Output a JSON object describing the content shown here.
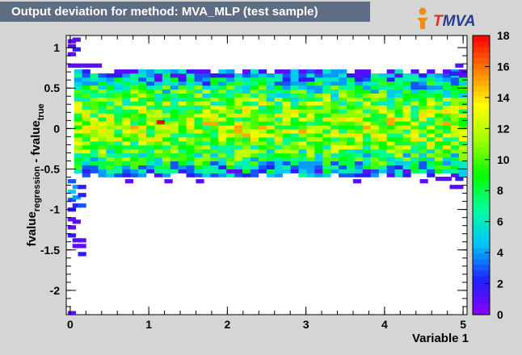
{
  "title": "Output deviation for method: MVA_MLP (test sample)",
  "logo": {
    "t": "T",
    "rest": "MVA"
  },
  "chart_data": {
    "type": "heatmap",
    "title": "Output deviation for method: MVA_MLP (test sample)",
    "xlabel": "Variable 1",
    "ylabel": "fvalue_regression - fvalue_true",
    "xlim": [
      -0.05,
      5.05
    ],
    "ylim": [
      -2.3,
      1.15
    ],
    "zlim": [
      0,
      18
    ],
    "x_ticks": [
      0,
      1,
      2,
      3,
      4,
      5
    ],
    "y_ticks": [
      1,
      0.5,
      0,
      -0.5,
      -1,
      -1.5,
      -2
    ],
    "z_ticks": [
      0,
      2,
      4,
      6,
      8,
      10,
      12,
      14,
      16,
      18
    ],
    "x_bins": 50,
    "y_bins": 70,
    "palette": [
      "#8a00ff",
      "#2020ff",
      "#00c0ff",
      "#00ffa0",
      "#00ff00",
      "#a0ff00",
      "#ffff00",
      "#ff8000",
      "#ff0000"
    ],
    "core_region": {
      "x": [
        0.05,
        5.0
      ],
      "y": [
        -0.6,
        0.72
      ]
    },
    "max_cell": {
      "x": 1.15,
      "y": 0.08,
      "count": 18
    },
    "sparse_points": [
      {
        "x": 0.02,
        "y": 1.08,
        "count": 1
      },
      {
        "x": 0.08,
        "y": 1.1,
        "count": 1
      },
      {
        "x": 0.02,
        "y": 1.02,
        "count": 1
      },
      {
        "x": 0.08,
        "y": 0.98,
        "count": 2
      },
      {
        "x": 0.02,
        "y": 0.92,
        "count": 1
      },
      {
        "x": 0.02,
        "y": 0.78,
        "count": 1
      },
      {
        "x": 0.08,
        "y": 0.78,
        "count": 1
      },
      {
        "x": 0.15,
        "y": 0.78,
        "count": 1
      },
      {
        "x": 0.25,
        "y": 0.78,
        "count": 1
      },
      {
        "x": 0.35,
        "y": 0.78,
        "count": 1
      },
      {
        "x": 0.02,
        "y": -0.65,
        "count": 3
      },
      {
        "x": 0.08,
        "y": -0.72,
        "count": 4
      },
      {
        "x": 0.02,
        "y": -0.78,
        "count": 5
      },
      {
        "x": 0.15,
        "y": -0.72,
        "count": 2
      },
      {
        "x": 0.02,
        "y": -0.88,
        "count": 3
      },
      {
        "x": 0.08,
        "y": -0.85,
        "count": 4
      },
      {
        "x": 0.15,
        "y": -0.82,
        "count": 2
      },
      {
        "x": 0.08,
        "y": -0.95,
        "count": 2
      },
      {
        "x": 0.15,
        "y": -0.95,
        "count": 3
      },
      {
        "x": 0.02,
        "y": -1.0,
        "count": 2
      },
      {
        "x": 0.02,
        "y": -1.12,
        "count": 1
      },
      {
        "x": 0.08,
        "y": -1.15,
        "count": 1
      },
      {
        "x": 0.02,
        "y": -1.22,
        "count": 1
      },
      {
        "x": 0.02,
        "y": -1.32,
        "count": 2
      },
      {
        "x": 0.08,
        "y": -1.38,
        "count": 1
      },
      {
        "x": 0.15,
        "y": -1.38,
        "count": 1
      },
      {
        "x": 0.08,
        "y": -1.45,
        "count": 1
      },
      {
        "x": 0.15,
        "y": -1.45,
        "count": 1
      },
      {
        "x": 0.15,
        "y": -1.55,
        "count": 2
      },
      {
        "x": 0.02,
        "y": -2.28,
        "count": 1
      },
      {
        "x": 4.95,
        "y": 0.78,
        "count": 1
      },
      {
        "x": 4.95,
        "y": 0.68,
        "count": 1
      },
      {
        "x": 4.88,
        "y": 0.68,
        "count": 2
      },
      {
        "x": 4.95,
        "y": -0.62,
        "count": 2
      },
      {
        "x": 4.88,
        "y": -0.72,
        "count": 1
      },
      {
        "x": 4.95,
        "y": -0.72,
        "count": 1
      },
      {
        "x": 4.8,
        "y": -0.62,
        "count": 1
      },
      {
        "x": 4.7,
        "y": -0.62,
        "count": 1
      },
      {
        "x": 0.75,
        "y": -0.65,
        "count": 1
      },
      {
        "x": 1.25,
        "y": -0.65,
        "count": 1
      },
      {
        "x": 1.65,
        "y": -0.65,
        "count": 1
      },
      {
        "x": 3.65,
        "y": -0.65,
        "count": 1
      },
      {
        "x": 4.5,
        "y": -0.65,
        "count": 1
      }
    ]
  }
}
